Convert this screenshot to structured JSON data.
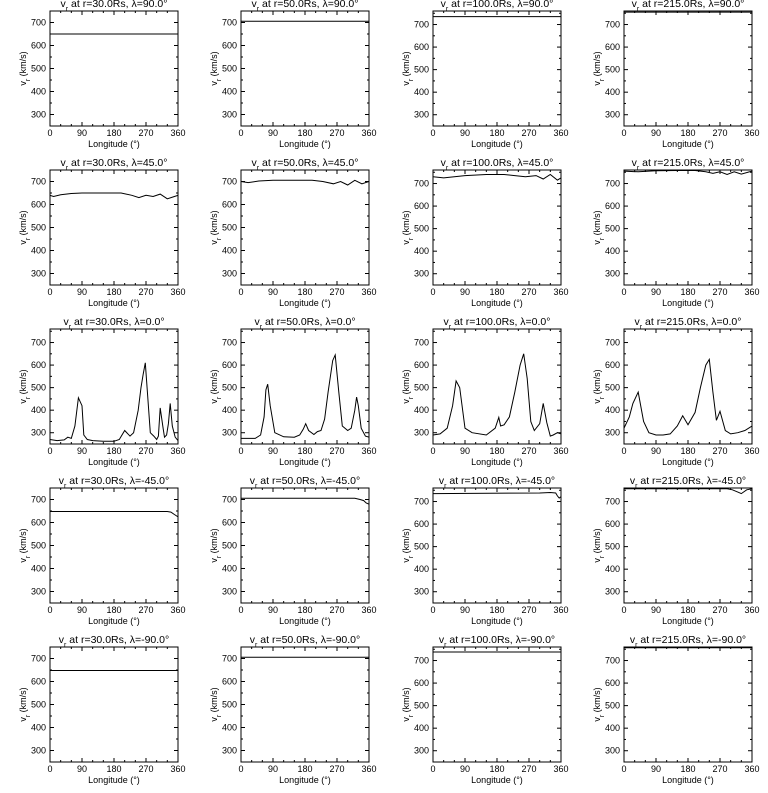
{
  "chart_data": [
    {
      "type": "line",
      "title": "v_r at r=30.0Rs,  λ=90.0°",
      "xlabel": "Longitude (°)",
      "ylabel": "v_r (km/s)",
      "xlim": [
        0,
        360
      ],
      "ylim": [
        250,
        750
      ],
      "x_ticks": [
        0,
        90,
        180,
        270,
        360
      ],
      "y_ticks": [
        300,
        400,
        500,
        600,
        700
      ],
      "x": [
        0,
        360
      ],
      "y": [
        650,
        650
      ]
    },
    {
      "type": "line",
      "title": "v_r at r=50.0Rs,  λ=90.0°",
      "xlabel": "Longitude (°)",
      "ylabel": "v_r (km/s)",
      "xlim": [
        0,
        360
      ],
      "ylim": [
        250,
        750
      ],
      "x_ticks": [
        0,
        90,
        180,
        270,
        360
      ],
      "y_ticks": [
        300,
        400,
        500,
        600,
        700
      ],
      "x": [
        0,
        360
      ],
      "y": [
        705,
        705
      ]
    },
    {
      "type": "line",
      "title": "v_r at r=100.0Rs,  λ=90.0°",
      "xlabel": "Longitude (°)",
      "ylabel": "v_r (km/s)",
      "xlim": [
        0,
        360
      ],
      "ylim": [
        250,
        760
      ],
      "x_ticks": [
        0,
        90,
        180,
        270,
        360
      ],
      "y_ticks": [
        300,
        400,
        500,
        600,
        700
      ],
      "x": [
        0,
        360
      ],
      "y": [
        735,
        735
      ]
    },
    {
      "type": "line",
      "title": "v_r at r=215.0Rs,  λ=90.0°",
      "xlabel": "Longitude (°)",
      "ylabel": "v_r (km/s)",
      "xlim": [
        0,
        360
      ],
      "ylim": [
        250,
        760
      ],
      "x_ticks": [
        0,
        90,
        180,
        270,
        360
      ],
      "y_ticks": [
        300,
        400,
        500,
        600,
        700
      ],
      "x": [
        0,
        360
      ],
      "y": [
        755,
        755
      ]
    },
    {
      "type": "line",
      "title": "v_r at r=30.0Rs,  λ=45.0°",
      "xlabel": "Longitude (°)",
      "ylabel": "v_r (km/s)",
      "xlim": [
        0,
        360
      ],
      "ylim": [
        250,
        750
      ],
      "x_ticks": [
        0,
        90,
        180,
        270,
        360
      ],
      "y_ticks": [
        300,
        400,
        500,
        600,
        700
      ],
      "x": [
        0,
        10,
        30,
        60,
        90,
        150,
        200,
        230,
        250,
        270,
        290,
        310,
        330,
        350,
        360
      ],
      "y": [
        640,
        635,
        642,
        648,
        650,
        650,
        650,
        640,
        630,
        640,
        635,
        645,
        625,
        635,
        640
      ]
    },
    {
      "type": "line",
      "title": "v_r at r=50.0Rs,  λ=45.0°",
      "xlabel": "Longitude (°)",
      "ylabel": "v_r (km/s)",
      "xlim": [
        0,
        360
      ],
      "ylim": [
        250,
        750
      ],
      "x_ticks": [
        0,
        90,
        180,
        270,
        360
      ],
      "y_ticks": [
        300,
        400,
        500,
        600,
        700
      ],
      "x": [
        0,
        20,
        50,
        90,
        150,
        200,
        230,
        260,
        280,
        300,
        320,
        340,
        360
      ],
      "y": [
        700,
        695,
        702,
        705,
        705,
        705,
        700,
        690,
        700,
        685,
        705,
        690,
        700
      ]
    },
    {
      "type": "line",
      "title": "v_r at r=100.0Rs,  λ=45.0°",
      "xlabel": "Longitude (°)",
      "ylabel": "v_r (km/s)",
      "xlim": [
        0,
        360
      ],
      "ylim": [
        250,
        760
      ],
      "x_ticks": [
        0,
        90,
        180,
        270,
        360
      ],
      "y_ticks": [
        300,
        400,
        500,
        600,
        700
      ],
      "x": [
        0,
        30,
        90,
        150,
        200,
        230,
        260,
        290,
        310,
        330,
        350,
        360
      ],
      "y": [
        730,
        725,
        735,
        740,
        740,
        735,
        730,
        735,
        720,
        740,
        715,
        725
      ]
    },
    {
      "type": "line",
      "title": "v_r at r=215.0Rs,  λ=45.0°",
      "xlabel": "Longitude (°)",
      "ylabel": "v_r (km/s)",
      "xlim": [
        0,
        360
      ],
      "ylim": [
        250,
        760
      ],
      "x_ticks": [
        0,
        90,
        180,
        270,
        360
      ],
      "y_ticks": [
        300,
        400,
        500,
        600,
        700
      ],
      "x": [
        0,
        40,
        90,
        150,
        200,
        230,
        250,
        270,
        290,
        310,
        330,
        360
      ],
      "y": [
        755,
        752,
        757,
        758,
        758,
        752,
        745,
        752,
        740,
        752,
        742,
        755
      ]
    },
    {
      "type": "line",
      "title": "v_r at r=30.0Rs,  λ=0.0°",
      "xlabel": "Longitude (°)",
      "ylabel": "v_r (km/s)",
      "xlim": [
        0,
        360
      ],
      "ylim": [
        250,
        760
      ],
      "x_ticks": [
        0,
        90,
        180,
        270,
        360
      ],
      "y_ticks": [
        300,
        400,
        500,
        600,
        700
      ],
      "x": [
        0,
        20,
        40,
        50,
        60,
        70,
        80,
        90,
        95,
        105,
        120,
        150,
        180,
        195,
        210,
        225,
        235,
        248,
        256,
        262,
        268,
        274,
        282,
        292,
        300,
        305,
        310,
        318,
        322,
        328,
        333,
        338,
        344,
        352,
        360
      ],
      "y": [
        270,
        265,
        268,
        280,
        275,
        330,
        455,
        420,
        290,
        270,
        265,
        262,
        262,
        270,
        310,
        285,
        300,
        400,
        500,
        560,
        610,
        480,
        300,
        285,
        270,
        285,
        410,
        320,
        280,
        290,
        340,
        430,
        330,
        280,
        265
      ]
    },
    {
      "type": "line",
      "title": "v_r at r=50.0Rs,  λ=0.0°",
      "xlabel": "Longitude (°)",
      "ylabel": "v_r (km/s)",
      "xlim": [
        0,
        360
      ],
      "ylim": [
        250,
        760
      ],
      "x_ticks": [
        0,
        90,
        180,
        270,
        360
      ],
      "y_ticks": [
        300,
        400,
        500,
        600,
        700
      ],
      "x": [
        0,
        40,
        55,
        65,
        70,
        75,
        82,
        95,
        120,
        150,
        165,
        175,
        182,
        190,
        205,
        215,
        225,
        235,
        245,
        258,
        265,
        275,
        285,
        300,
        310,
        315,
        320,
        325,
        330,
        338,
        350,
        360
      ],
      "y": [
        275,
        275,
        290,
        370,
        490,
        515,
        420,
        300,
        282,
        280,
        290,
        315,
        340,
        310,
        292,
        305,
        310,
        360,
        480,
        620,
        645,
        480,
        330,
        310,
        320,
        360,
        400,
        458,
        420,
        320,
        285,
        280
      ]
    },
    {
      "type": "line",
      "title": "v_r at r=100.0Rs,  λ=0.0°",
      "xlabel": "Longitude (°)",
      "ylabel": "v_r (km/s)",
      "xlim": [
        0,
        360
      ],
      "ylim": [
        250,
        760
      ],
      "x_ticks": [
        0,
        90,
        180,
        270,
        360
      ],
      "y_ticks": [
        300,
        400,
        500,
        600,
        700
      ],
      "x": [
        0,
        20,
        40,
        55,
        65,
        75,
        90,
        110,
        150,
        175,
        185,
        190,
        200,
        215,
        230,
        245,
        255,
        265,
        275,
        285,
        300,
        310,
        320,
        330,
        338,
        350,
        360
      ],
      "y": [
        290,
        295,
        320,
        420,
        530,
        500,
        320,
        300,
        290,
        320,
        368,
        330,
        335,
        370,
        480,
        600,
        650,
        540,
        350,
        310,
        340,
        430,
        345,
        285,
        290,
        300,
        295
      ]
    },
    {
      "type": "line",
      "title": "v_r at r=215.0Rs,  λ=0.0°",
      "xlabel": "Longitude (°)",
      "ylabel": "v_r (km/s)",
      "xlim": [
        0,
        360
      ],
      "ylim": [
        250,
        760
      ],
      "x_ticks": [
        0,
        90,
        180,
        270,
        360
      ],
      "y_ticks": [
        300,
        400,
        500,
        600,
        700
      ],
      "x": [
        0,
        15,
        25,
        40,
        55,
        70,
        90,
        110,
        130,
        150,
        165,
        180,
        200,
        215,
        230,
        240,
        250,
        260,
        270,
        285,
        300,
        320,
        340,
        360
      ],
      "y": [
        320,
        370,
        430,
        480,
        350,
        300,
        290,
        290,
        295,
        330,
        375,
        335,
        390,
        500,
        600,
        625,
        480,
        355,
        395,
        310,
        295,
        300,
        310,
        330
      ]
    },
    {
      "type": "line",
      "title": "v_r at r=30.0Rs,  λ=-45.0°",
      "xlabel": "Longitude (°)",
      "ylabel": "v_r (km/s)",
      "xlim": [
        0,
        360
      ],
      "ylim": [
        250,
        750
      ],
      "x_ticks": [
        0,
        90,
        180,
        270,
        360
      ],
      "y_ticks": [
        300,
        400,
        500,
        600,
        700
      ],
      "x": [
        0,
        330,
        340,
        350,
        360
      ],
      "y": [
        648,
        648,
        645,
        635,
        625
      ]
    },
    {
      "type": "line",
      "title": "v_r at r=50.0Rs,  λ=-45.0°",
      "xlabel": "Longitude (°)",
      "ylabel": "v_r (km/s)",
      "xlim": [
        0,
        360
      ],
      "ylim": [
        250,
        750
      ],
      "x_ticks": [
        0,
        90,
        180,
        270,
        360
      ],
      "y_ticks": [
        300,
        400,
        500,
        600,
        700
      ],
      "x": [
        0,
        320,
        335,
        345,
        352,
        360
      ],
      "y": [
        705,
        705,
        700,
        695,
        685,
        680
      ]
    },
    {
      "type": "line",
      "title": "v_r at r=100.0Rs,  λ=-45.0°",
      "xlabel": "Longitude (°)",
      "ylabel": "v_r (km/s)",
      "xlim": [
        0,
        360
      ],
      "ylim": [
        250,
        760
      ],
      "x_ticks": [
        0,
        90,
        180,
        270,
        360
      ],
      "y_ticks": [
        300,
        400,
        500,
        600,
        700
      ],
      "x": [
        0,
        300,
        330,
        345,
        350,
        355,
        360
      ],
      "y": [
        735,
        738,
        740,
        738,
        725,
        715,
        722
      ]
    },
    {
      "type": "line",
      "title": "v_r at r=215.0Rs,  λ=-45.0°",
      "xlabel": "Longitude (°)",
      "ylabel": "v_r (km/s)",
      "xlim": [
        0,
        360
      ],
      "ylim": [
        250,
        760
      ],
      "x_ticks": [
        0,
        90,
        180,
        270,
        360
      ],
      "y_ticks": [
        300,
        400,
        500,
        600,
        700
      ],
      "x": [
        0,
        290,
        305,
        320,
        330,
        345,
        360
      ],
      "y": [
        757,
        757,
        752,
        742,
        735,
        752,
        757
      ]
    },
    {
      "type": "line",
      "title": "v_r at r=30.0Rs,  λ=-90.0°",
      "xlabel": "Longitude (°)",
      "ylabel": "v_r (km/s)",
      "xlim": [
        0,
        360
      ],
      "ylim": [
        250,
        750
      ],
      "x_ticks": [
        0,
        90,
        180,
        270,
        360
      ],
      "y_ticks": [
        300,
        400,
        500,
        600,
        700
      ],
      "x": [
        0,
        360
      ],
      "y": [
        648,
        648
      ]
    },
    {
      "type": "line",
      "title": "v_r at r=50.0Rs,  λ=-90.0°",
      "xlabel": "Longitude (°)",
      "ylabel": "v_r (km/s)",
      "xlim": [
        0,
        360
      ],
      "ylim": [
        250,
        750
      ],
      "x_ticks": [
        0,
        90,
        180,
        270,
        360
      ],
      "y_ticks": [
        300,
        400,
        500,
        600,
        700
      ],
      "x": [
        0,
        360
      ],
      "y": [
        705,
        705
      ]
    },
    {
      "type": "line",
      "title": "v_r at r=100.0Rs,  λ=-90.0°",
      "xlabel": "Longitude (°)",
      "ylabel": "v_r (km/s)",
      "xlim": [
        0,
        360
      ],
      "ylim": [
        250,
        760
      ],
      "x_ticks": [
        0,
        90,
        180,
        270,
        360
      ],
      "y_ticks": [
        300,
        400,
        500,
        600,
        700
      ],
      "x": [
        0,
        360
      ],
      "y": [
        738,
        738
      ]
    },
    {
      "type": "line",
      "title": "v_r at r=215.0Rs,  λ=-90.0°",
      "xlabel": "Longitude (°)",
      "ylabel": "v_r (km/s)",
      "xlim": [
        0,
        360
      ],
      "ylim": [
        250,
        760
      ],
      "x_ticks": [
        0,
        90,
        180,
        270,
        360
      ],
      "y_ticks": [
        300,
        400,
        500,
        600,
        700
      ],
      "x": [
        0,
        360
      ],
      "y": [
        757,
        757
      ]
    }
  ]
}
